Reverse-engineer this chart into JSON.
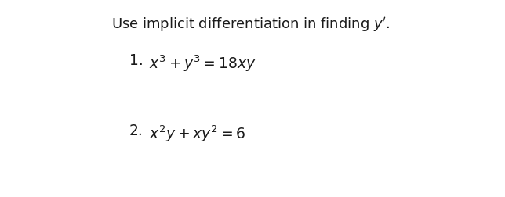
{
  "background_color": "#ffffff",
  "title_text": "Use implicit differentiation in finding $\\it{y}^{\\prime}$.",
  "title_fontsize": 13.0,
  "title_color": "#1a1a1a",
  "item1_label": "1.",
  "item1_formula": "$x^3+y^3=18xy$",
  "item1_fontsize": 13.5,
  "item2_label": "2.",
  "item2_formula": "$x^2y+xy^2=6$",
  "item2_fontsize": 13.5,
  "label_fontsize": 13.5,
  "label_color": "#1a1a1a",
  "formula_color": "#1a1a1a",
  "fig_width": 6.44,
  "fig_height": 2.53,
  "dpi": 100
}
